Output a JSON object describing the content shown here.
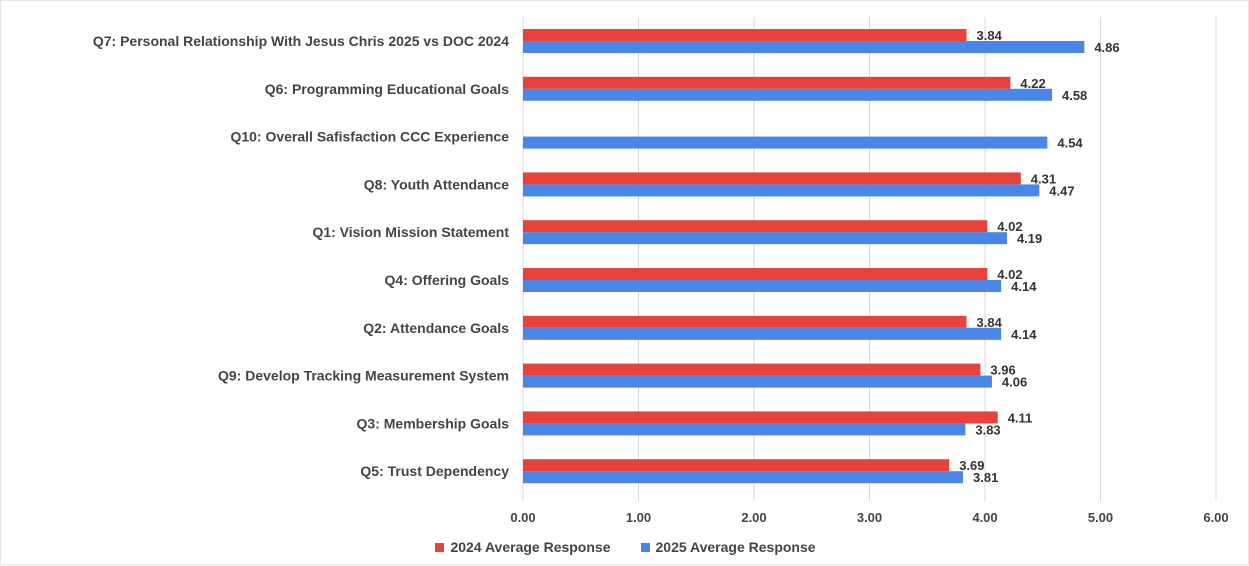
{
  "chart_data": {
    "type": "bar",
    "orientation": "horizontal",
    "categories": [
      "Q7: Personal Relationship With Jesus Chris 2025  vs DOC 2024",
      "Q6: Programming Educational Goals",
      "Q10: Overall Safisfaction  CCC Experience",
      "Q8: Youth Attendance",
      "Q1: Vision Mission Statement",
      "Q4: Offering Goals",
      "Q2: Attendance Goals",
      "Q9: Develop  Tracking Measurement System",
      "Q3: Membership Goals",
      "Q5: Trust Dependency"
    ],
    "series": [
      {
        "name": "2024 Average Response",
        "color": "#e8423a",
        "values": [
          3.84,
          4.22,
          null,
          4.31,
          4.02,
          4.02,
          3.84,
          3.96,
          4.11,
          3.69
        ]
      },
      {
        "name": "2025 Average Response",
        "color": "#4a86e8",
        "values": [
          4.86,
          4.58,
          4.54,
          4.47,
          4.19,
          4.14,
          4.14,
          4.06,
          3.83,
          3.81
        ]
      }
    ],
    "xlim": [
      0,
      6
    ],
    "xticks": [
      "0.00",
      "1.00",
      "2.00",
      "3.00",
      "4.00",
      "5.00",
      "6.00"
    ],
    "grid": true,
    "legend_position": "bottom",
    "data_labels": true
  }
}
